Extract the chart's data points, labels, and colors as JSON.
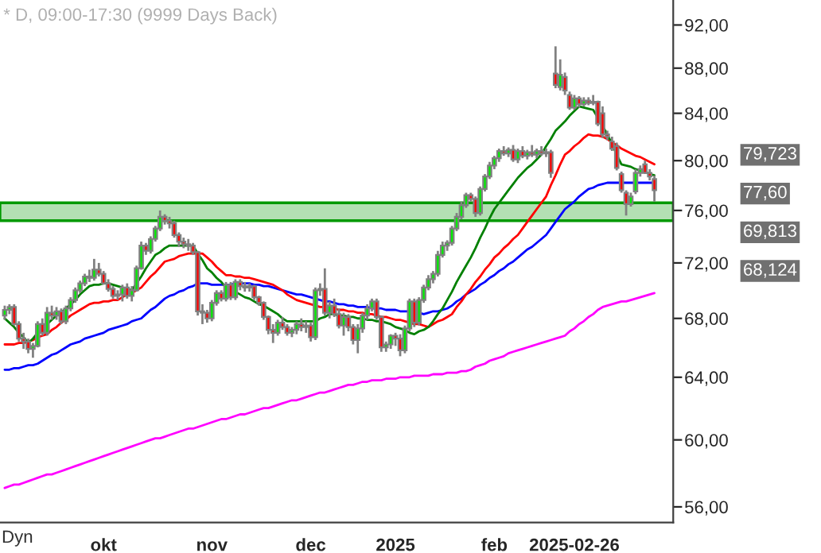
{
  "chart_data": {
    "type": "candlestick",
    "title": "* D, 09:00-17:30 (9999 Days Back)",
    "categories": [
      null,
      null,
      null,
      null,
      null,
      null,
      null,
      null,
      null,
      null,
      null,
      null,
      null,
      null,
      null,
      null,
      null,
      null,
      null,
      null,
      null,
      "okt",
      null,
      null,
      null,
      null,
      null,
      null,
      null,
      null,
      null,
      null,
      null,
      null,
      null,
      null,
      null,
      null,
      null,
      null,
      null,
      null,
      null,
      null,
      "nov",
      null,
      null,
      null,
      null,
      null,
      null,
      null,
      null,
      null,
      null,
      null,
      null,
      null,
      null,
      null,
      null,
      null,
      null,
      null,
      null,
      "dec",
      null,
      null,
      null,
      null,
      null,
      null,
      null,
      null,
      null,
      null,
      null,
      null,
      null,
      null,
      null,
      null,
      null,
      "2025",
      null,
      null,
      null,
      null,
      null,
      null,
      null,
      null,
      null,
      null,
      null,
      null,
      null,
      null,
      null,
      null,
      null,
      null,
      null,
      null,
      "feb",
      null,
      null,
      null,
      null,
      null,
      null,
      null,
      null,
      null,
      null,
      null,
      null,
      null,
      null,
      null,
      null,
      "2025-02-26",
      null,
      null,
      null,
      null,
      null,
      null,
      null,
      null,
      null,
      null,
      null,
      null,
      null,
      null,
      null,
      null,
      null
    ],
    "ohlc": [
      [
        68.2,
        68.9,
        67.9,
        68.6
      ],
      [
        68.6,
        69.0,
        68.3,
        68.8
      ],
      [
        68.8,
        69.0,
        67.5,
        67.6
      ],
      [
        67.6,
        67.8,
        66.4,
        66.6
      ],
      [
        66.6,
        67.0,
        65.9,
        66.4
      ],
      [
        66.4,
        66.6,
        65.6,
        65.9
      ],
      [
        65.9,
        66.3,
        65.3,
        66.1
      ],
      [
        66.1,
        67.8,
        66.0,
        67.6
      ],
      [
        67.6,
        68.0,
        66.8,
        67.0
      ],
      [
        67.0,
        68.8,
        66.8,
        68.4
      ],
      [
        68.4,
        68.9,
        67.9,
        68.2
      ],
      [
        68.2,
        68.8,
        67.9,
        68.5
      ],
      [
        68.5,
        68.7,
        67.6,
        67.8
      ],
      [
        67.8,
        68.9,
        67.6,
        68.7
      ],
      [
        68.7,
        69.5,
        68.5,
        69.3
      ],
      [
        69.3,
        70.2,
        69.1,
        70.0
      ],
      [
        70.0,
        70.7,
        69.8,
        70.5
      ],
      [
        70.5,
        71.2,
        70.3,
        71.0
      ],
      [
        71.0,
        71.5,
        70.6,
        70.9
      ],
      [
        70.9,
        72.3,
        70.7,
        71.5
      ],
      [
        71.5,
        72.0,
        71.0,
        71.2
      ],
      [
        71.2,
        71.4,
        70.4,
        70.5
      ],
      [
        70.5,
        70.8,
        69.9,
        70.1
      ],
      [
        70.1,
        70.3,
        69.4,
        69.6
      ],
      [
        69.6,
        70.0,
        69.3,
        69.7
      ],
      [
        69.7,
        70.4,
        69.2,
        70.2
      ],
      [
        70.2,
        70.5,
        69.4,
        69.6
      ],
      [
        69.6,
        70.3,
        69.2,
        70.0
      ],
      [
        70.0,
        71.8,
        69.9,
        71.6
      ],
      [
        71.6,
        73.6,
        71.5,
        73.3
      ],
      [
        73.3,
        73.5,
        72.6,
        72.9
      ],
      [
        72.9,
        74.0,
        72.7,
        73.8
      ],
      [
        73.8,
        74.8,
        73.6,
        74.6
      ],
      [
        74.6,
        76.0,
        74.4,
        75.5
      ],
      [
        75.5,
        75.7,
        74.9,
        75.2
      ],
      [
        75.2,
        75.5,
        74.6,
        75.0
      ],
      [
        75.0,
        75.2,
        73.9,
        74.1
      ],
      [
        74.1,
        74.3,
        73.2,
        73.6
      ],
      [
        73.6,
        73.9,
        73.1,
        73.4
      ],
      [
        73.4,
        73.8,
        72.9,
        73.3
      ],
      [
        73.3,
        73.5,
        72.6,
        72.8
      ],
      [
        72.8,
        72.9,
        68.2,
        68.5
      ],
      [
        68.5,
        69.0,
        67.6,
        68.4
      ],
      [
        68.4,
        68.6,
        67.7,
        68.0
      ],
      [
        68.0,
        69.3,
        67.8,
        69.1
      ],
      [
        69.1,
        70.0,
        68.9,
        69.8
      ],
      [
        69.8,
        70.0,
        69.2,
        69.4
      ],
      [
        69.4,
        70.6,
        69.2,
        70.4
      ],
      [
        70.4,
        70.6,
        69.3,
        69.5
      ],
      [
        69.5,
        70.8,
        69.3,
        70.6
      ],
      [
        70.6,
        70.8,
        70.0,
        70.3
      ],
      [
        70.3,
        70.6,
        69.9,
        70.2
      ],
      [
        70.2,
        70.5,
        69.9,
        70.3
      ],
      [
        70.3,
        70.4,
        69.3,
        69.5
      ],
      [
        69.5,
        69.6,
        68.9,
        69.1
      ],
      [
        69.1,
        69.2,
        67.9,
        68.1
      ],
      [
        68.1,
        68.2,
        66.9,
        67.2
      ],
      [
        67.2,
        67.6,
        66.3,
        67.0
      ],
      [
        67.0,
        67.9,
        66.8,
        67.7
      ],
      [
        67.7,
        68.1,
        67.2,
        67.4
      ],
      [
        67.4,
        67.6,
        66.8,
        67.0
      ],
      [
        67.0,
        67.4,
        66.7,
        67.2
      ],
      [
        67.2,
        67.8,
        66.9,
        67.6
      ],
      [
        67.6,
        68.0,
        67.1,
        67.4
      ],
      [
        67.4,
        67.8,
        67.0,
        67.5
      ],
      [
        67.5,
        67.7,
        66.4,
        66.7
      ],
      [
        66.7,
        70.2,
        66.5,
        70.0
      ],
      [
        70.0,
        70.5,
        69.6,
        70.1
      ],
      [
        70.1,
        71.6,
        68.2,
        68.4
      ],
      [
        68.4,
        69.2,
        68.0,
        68.9
      ],
      [
        68.9,
        69.4,
        68.1,
        68.3
      ],
      [
        68.3,
        68.7,
        67.3,
        67.5
      ],
      [
        67.5,
        68.4,
        66.8,
        68.1
      ],
      [
        68.1,
        68.3,
        67.1,
        67.4
      ],
      [
        67.4,
        67.6,
        66.2,
        66.5
      ],
      [
        66.5,
        67.6,
        65.6,
        67.3
      ],
      [
        67.3,
        68.4,
        67.0,
        68.2
      ],
      [
        68.2,
        69.0,
        67.9,
        68.7
      ],
      [
        68.7,
        69.4,
        68.5,
        69.2
      ],
      [
        69.2,
        69.4,
        67.9,
        68.1
      ],
      [
        68.1,
        68.2,
        65.7,
        66.0
      ],
      [
        66.0,
        66.4,
        65.7,
        66.2
      ],
      [
        66.2,
        66.9,
        65.9,
        66.8
      ],
      [
        66.8,
        67.0,
        66.1,
        66.6
      ],
      [
        66.6,
        66.9,
        65.4,
        65.8
      ],
      [
        65.8,
        67.5,
        65.6,
        67.3
      ],
      [
        67.3,
        69.4,
        67.1,
        69.2
      ],
      [
        69.2,
        69.4,
        67.4,
        67.7
      ],
      [
        67.7,
        69.5,
        67.5,
        69.3
      ],
      [
        69.3,
        70.4,
        69.1,
        70.2
      ],
      [
        70.2,
        71.1,
        70.0,
        70.8
      ],
      [
        70.8,
        71.4,
        70.5,
        71.2
      ],
      [
        71.2,
        72.9,
        71.0,
        72.6
      ],
      [
        72.6,
        73.6,
        72.4,
        73.3
      ],
      [
        73.3,
        73.7,
        72.9,
        73.5
      ],
      [
        73.5,
        74.8,
        73.3,
        74.6
      ],
      [
        74.6,
        75.8,
        74.4,
        75.5
      ],
      [
        75.5,
        76.7,
        75.3,
        76.4
      ],
      [
        76.4,
        77.4,
        76.2,
        77.2
      ],
      [
        77.2,
        77.4,
        76.7,
        76.9
      ],
      [
        76.9,
        77.1,
        75.5,
        75.8
      ],
      [
        75.8,
        77.9,
        75.6,
        77.7
      ],
      [
        77.7,
        78.9,
        77.5,
        78.7
      ],
      [
        78.7,
        79.9,
        78.5,
        79.6
      ],
      [
        79.6,
        80.4,
        79.3,
        80.2
      ],
      [
        80.2,
        81.0,
        79.9,
        80.8
      ],
      [
        80.8,
        81.2,
        80.4,
        80.6
      ],
      [
        80.6,
        81.1,
        80.3,
        80.9
      ],
      [
        80.9,
        81.3,
        79.9,
        80.1
      ],
      [
        80.1,
        81.0,
        79.8,
        80.8
      ],
      [
        80.8,
        81.2,
        80.2,
        80.4
      ],
      [
        80.4,
        80.9,
        80.1,
        80.7
      ],
      [
        80.7,
        81.3,
        80.3,
        80.5
      ],
      [
        80.5,
        81.0,
        80.2,
        80.8
      ],
      [
        80.8,
        81.2,
        80.4,
        80.6
      ],
      [
        80.6,
        81.0,
        80.3,
        80.7
      ],
      [
        80.7,
        80.9,
        78.6,
        79.0
      ],
      [
        87.5,
        90.0,
        86.2,
        86.5
      ],
      [
        86.3,
        88.8,
        86.0,
        87.4
      ],
      [
        87.2,
        87.6,
        85.6,
        86.0
      ],
      [
        85.6,
        85.9,
        84.3,
        84.5
      ],
      [
        84.5,
        85.6,
        84.3,
        85.3
      ],
      [
        85.3,
        85.5,
        84.5,
        84.8
      ],
      [
        84.8,
        85.4,
        84.6,
        85.1
      ],
      [
        85.1,
        85.4,
        84.7,
        84.9
      ],
      [
        84.9,
        85.6,
        84.7,
        85.0
      ],
      [
        85.0,
        85.1,
        82.9,
        83.1
      ],
      [
        84.0,
        84.6,
        81.9,
        82.2
      ],
      [
        82.2,
        82.5,
        81.7,
        82.0
      ],
      [
        81.6,
        82.0,
        80.8,
        81.0
      ],
      [
        81.2,
        81.5,
        79.2,
        79.4
      ],
      [
        78.9,
        79.1,
        77.4,
        77.6
      ],
      [
        77.4,
        77.6,
        75.6,
        76.5
      ],
      [
        76.5,
        77.4,
        76.3,
        77.1
      ],
      [
        77.5,
        79.3,
        77.3,
        79.0
      ],
      [
        79.0,
        79.6,
        78.7,
        79.3
      ],
      [
        79.7,
        80.0,
        78.9,
        79.0
      ],
      [
        79.0,
        79.3,
        78.4,
        78.7
      ],
      [
        78.5,
        78.8,
        76.7,
        77.6
      ]
    ],
    "series": [
      {
        "type": "line",
        "color": "#ff00ff",
        "values": [
          57.1,
          57.2,
          57.3,
          57.3,
          57.4,
          57.5,
          57.6,
          57.7,
          57.8,
          57.9,
          57.9,
          58.0,
          58.1,
          58.2,
          58.3,
          58.4,
          58.5,
          58.6,
          58.7,
          58.8,
          58.9,
          59.0,
          59.1,
          59.2,
          59.3,
          59.4,
          59.5,
          59.6,
          59.7,
          59.8,
          59.9,
          60.0,
          60.1,
          60.1,
          60.2,
          60.3,
          60.4,
          60.5,
          60.6,
          60.7,
          60.7,
          60.8,
          60.9,
          61.0,
          61.1,
          61.2,
          61.3,
          61.3,
          61.4,
          61.5,
          61.6,
          61.6,
          61.7,
          61.8,
          61.9,
          62.0,
          62.0,
          62.1,
          62.2,
          62.3,
          62.4,
          62.5,
          62.5,
          62.6,
          62.7,
          62.8,
          62.9,
          63.0,
          63.0,
          63.1,
          63.2,
          63.3,
          63.4,
          63.5,
          63.5,
          63.6,
          63.7,
          63.7,
          63.8,
          63.8,
          63.8,
          63.9,
          63.9,
          63.9,
          64.0,
          64.0,
          64.0,
          64.1,
          64.1,
          64.1,
          64.1,
          64.2,
          64.2,
          64.2,
          64.3,
          64.3,
          64.3,
          64.4,
          64.4,
          64.5,
          64.7,
          64.8,
          64.9,
          65.1,
          65.2,
          65.3,
          65.4,
          65.6,
          65.7,
          65.8,
          65.9,
          66.0,
          66.1,
          66.2,
          66.3,
          66.4,
          66.5,
          66.6,
          66.7,
          66.8,
          67.1,
          67.3,
          67.6,
          67.8,
          68.1,
          68.3,
          68.6,
          68.8,
          68.9,
          69.0,
          69.1,
          69.2,
          69.2,
          69.3,
          69.4,
          69.5,
          69.6,
          69.7,
          69.8
        ]
      },
      {
        "type": "line",
        "color": "#0000ff",
        "values": [
          64.5,
          64.5,
          64.6,
          64.6,
          64.7,
          64.8,
          64.8,
          64.9,
          65.1,
          65.3,
          65.5,
          65.6,
          65.8,
          66.0,
          66.2,
          66.3,
          66.4,
          66.6,
          66.7,
          66.8,
          66.9,
          67.0,
          67.2,
          67.3,
          67.4,
          67.5,
          67.6,
          67.8,
          67.9,
          68.0,
          68.3,
          68.6,
          68.8,
          69.1,
          69.4,
          69.6,
          69.7,
          69.9,
          70.0,
          70.2,
          70.3,
          70.5,
          70.5,
          70.5,
          70.4,
          70.4,
          70.4,
          70.4,
          70.4,
          70.5,
          70.5,
          70.5,
          70.5,
          70.4,
          70.4,
          70.3,
          70.3,
          70.2,
          70.1,
          70.0,
          69.9,
          69.8,
          69.7,
          69.7,
          69.6,
          69.5,
          69.4,
          69.3,
          69.2,
          69.2,
          69.1,
          69.0,
          69.0,
          68.9,
          68.9,
          68.8,
          68.8,
          68.8,
          68.7,
          68.7,
          68.7,
          68.6,
          68.6,
          68.6,
          68.5,
          68.5,
          68.5,
          68.4,
          68.4,
          68.3,
          68.4,
          68.5,
          68.5,
          68.6,
          68.7,
          68.9,
          69.2,
          69.4,
          69.7,
          69.9,
          70.1,
          70.4,
          70.6,
          70.9,
          71.1,
          71.4,
          71.6,
          71.9,
          72.1,
          72.4,
          72.7,
          73.0,
          73.2,
          73.5,
          73.8,
          74.1,
          74.6,
          75.1,
          75.6,
          76.1,
          76.4,
          76.7,
          77.1,
          77.4,
          77.7,
          77.8,
          78.0,
          78.1,
          78.2,
          78.2,
          78.2,
          78.2,
          78.2,
          78.2,
          78.2,
          78.2,
          78.2,
          78.2,
          78.2
        ]
      },
      {
        "type": "line",
        "color": "#ff0000",
        "values": [
          66.2,
          66.2,
          66.2,
          66.3,
          66.3,
          66.4,
          66.5,
          66.7,
          66.8,
          66.9,
          67.2,
          67.4,
          67.7,
          67.9,
          68.2,
          68.4,
          68.6,
          68.8,
          69.0,
          69.1,
          69.1,
          69.2,
          69.2,
          69.3,
          69.3,
          69.5,
          69.7,
          69.8,
          70.0,
          70.2,
          70.6,
          71.0,
          71.3,
          71.7,
          72.1,
          72.2,
          72.3,
          72.5,
          72.6,
          72.7,
          72.7,
          72.7,
          72.7,
          72.4,
          72.1,
          71.7,
          71.4,
          71.1,
          71.1,
          71.0,
          71.0,
          70.9,
          70.9,
          70.8,
          70.7,
          70.6,
          70.5,
          70.4,
          70.2,
          70.0,
          69.7,
          69.5,
          69.3,
          69.2,
          69.1,
          69.0,
          68.9,
          68.8,
          68.8,
          68.7,
          68.7,
          68.6,
          68.6,
          68.5,
          68.5,
          68.4,
          68.4,
          68.3,
          68.3,
          68.2,
          68.1,
          68.1,
          68.0,
          67.9,
          67.9,
          67.8,
          67.7,
          67.6,
          67.6,
          67.5,
          67.4,
          67.6,
          67.8,
          67.9,
          68.1,
          68.3,
          68.8,
          69.2,
          69.7,
          70.1,
          70.6,
          71.0,
          71.5,
          71.9,
          72.4,
          72.7,
          73.1,
          73.4,
          73.8,
          74.1,
          74.6,
          75.1,
          75.6,
          76.1,
          76.6,
          77.1,
          78.0,
          78.8,
          79.7,
          80.5,
          80.8,
          81.2,
          81.5,
          81.9,
          82.2,
          82.1,
          82.1,
          82.0,
          81.8,
          81.5,
          81.3,
          81.0,
          80.8,
          80.6,
          80.4,
          80.3,
          80.1,
          79.9,
          79.7
        ]
      },
      {
        "type": "line",
        "color": "#008000",
        "values": [
          68.0,
          67.7,
          67.4,
          67.0,
          66.7,
          66.3,
          66.6,
          67.0,
          67.3,
          67.6,
          67.9,
          68.2,
          68.4,
          68.7,
          69.0,
          69.3,
          69.7,
          70.0,
          70.3,
          70.4,
          70.4,
          70.5,
          70.5,
          70.4,
          70.3,
          70.2,
          70.1,
          70.0,
          70.5,
          71.0,
          71.6,
          72.1,
          72.6,
          72.8,
          73.1,
          73.3,
          73.3,
          73.3,
          73.3,
          73.3,
          73.3,
          72.7,
          72.2,
          71.6,
          71.3,
          70.9,
          70.6,
          70.2,
          70.0,
          69.9,
          69.7,
          69.5,
          69.4,
          69.2,
          69.0,
          68.9,
          68.7,
          68.5,
          68.3,
          68.0,
          67.8,
          67.8,
          67.8,
          67.8,
          67.8,
          67.8,
          67.8,
          68.0,
          68.1,
          68.3,
          68.3,
          68.2,
          68.2,
          68.1,
          68.1,
          68.0,
          68.0,
          67.9,
          67.9,
          67.8,
          67.8,
          67.7,
          67.6,
          67.4,
          67.3,
          67.2,
          67.0,
          66.9,
          67.1,
          67.2,
          67.4,
          67.8,
          68.3,
          68.7,
          69.3,
          69.9,
          70.6,
          71.2,
          71.8,
          72.4,
          73.1,
          73.9,
          74.6,
          75.4,
          76.1,
          76.6,
          77.1,
          77.6,
          78.1,
          78.6,
          79.0,
          79.4,
          79.7,
          80.1,
          80.5,
          81.2,
          81.8,
          82.5,
          82.9,
          83.3,
          83.8,
          84.2,
          84.6,
          84.5,
          84.4,
          84.3,
          83.6,
          82.9,
          82.2,
          81.4,
          80.5,
          79.7,
          79.6,
          79.5,
          79.3,
          79.2,
          79.1,
          78.9,
          78.8
        ]
      }
    ],
    "bands": [
      {
        "axis": "y",
        "from": 75.2,
        "to": 76.6,
        "color": "#b3e0b3"
      }
    ],
    "annotations": [
      "79,723",
      "77,60",
      "69,813",
      "68,124",
      "Dyn"
    ],
    "log": true,
    "ylim": [
      55.1,
      94.4
    ],
    "yticks": [
      {
        "value": 56,
        "label": "56,00"
      },
      {
        "value": 60,
        "label": "60,00"
      },
      {
        "value": 64,
        "label": "64,00"
      },
      {
        "value": 68,
        "label": "68,00"
      },
      {
        "value": 72,
        "label": "72,00"
      },
      {
        "value": 76,
        "label": "76,00"
      },
      {
        "value": 80,
        "label": "80,00"
      },
      {
        "value": 84,
        "label": "84,00"
      },
      {
        "value": 88,
        "label": "88,00"
      },
      {
        "value": 92,
        "label": "92,00"
      }
    ],
    "grid": false,
    "legend": false
  }
}
